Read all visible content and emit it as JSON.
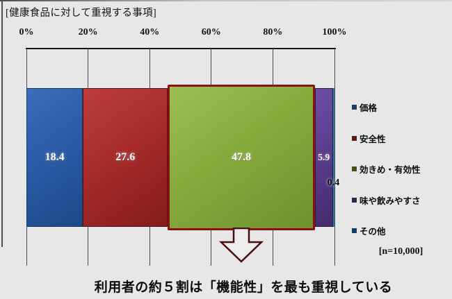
{
  "colors": {
    "background": "#e7e7e7",
    "axis": "#161616",
    "grid": "#4a4a4a",
    "arrow_border": "#4a0c0c",
    "arrow_fill": "#ededed",
    "highlight_border": "#8c1010"
  },
  "chart_data": {
    "type": "bar",
    "subtype": "horizontal-stacked-100pct",
    "title": "[健康食品に対して重視する事項]",
    "categories": [
      "価格",
      "安全性",
      "効きめ・有効性",
      "味や飲みやすさ",
      "その他"
    ],
    "values": [
      18.4,
      27.6,
      47.8,
      5.9,
      0.4
    ],
    "xlim": [
      0,
      100
    ],
    "x_ticks": [
      "0%",
      "20%",
      "40%",
      "60%",
      "80%",
      "100%"
    ],
    "grid": true,
    "legend_position": "right",
    "n_label": "[n=10,000]",
    "annotation": "利用者の約５割は「機能性」を最も重視している",
    "segments": [
      {
        "key": "price",
        "label": "価格",
        "value": 18.4,
        "value_label": "18.4",
        "gradient": [
          "#3b6fb8",
          "#2a5ca6",
          "#1c4888"
        ],
        "edge": "#123a6b",
        "legend_swatch": "#1b3a66",
        "highlight": false,
        "label_outside": false,
        "small_label": false
      },
      {
        "key": "safety",
        "label": "安全性",
        "value": 27.6,
        "value_label": "27.6",
        "gradient": [
          "#bc3e3c",
          "#a62c2a",
          "#841c1c"
        ],
        "edge": "#5f1111",
        "legend_swatch": "#5e1a1a",
        "highlight": false,
        "label_outside": false,
        "small_label": false
      },
      {
        "key": "efficacy",
        "label": "効きめ・有効性",
        "value": 47.8,
        "value_label": "47.8",
        "gradient": [
          "#9cbf55",
          "#85aa3c",
          "#6d9130"
        ],
        "edge": "#8c1010",
        "legend_swatch": "#40541d",
        "highlight": true,
        "label_outside": false,
        "small_label": false
      },
      {
        "key": "taste",
        "label": "味や飲みやすさ",
        "value": 5.9,
        "value_label": "5.9",
        "gradient": [
          "#6f4da6",
          "#5b3d8c",
          "#432b6d"
        ],
        "edge": "#2c1d42",
        "legend_swatch": "#352447",
        "highlight": false,
        "label_outside": false,
        "small_label": true
      },
      {
        "key": "other",
        "label": "その他",
        "value": 0.4,
        "value_label": "0.4",
        "gradient": null,
        "color": "#38a3da",
        "edge": "#2b7cae",
        "legend_swatch": "#123f63",
        "highlight": false,
        "label_outside": true,
        "small_label": false
      }
    ]
  }
}
